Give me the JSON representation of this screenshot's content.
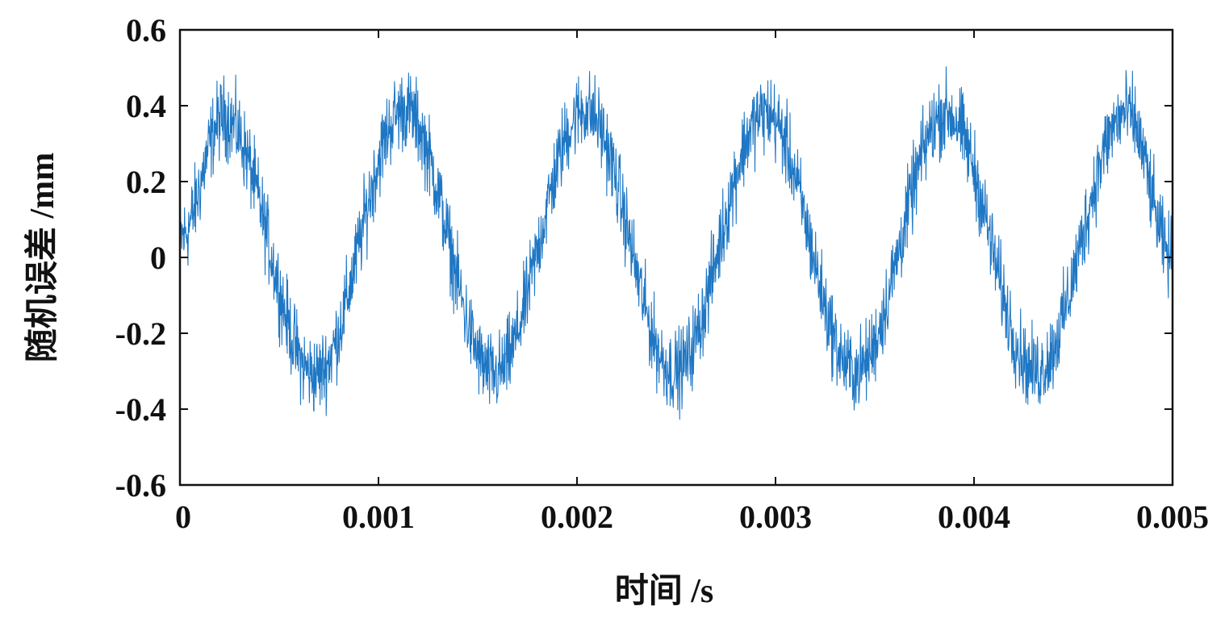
{
  "chart_data": {
    "type": "line",
    "title": "",
    "xlabel": "时间 /s",
    "ylabel": "随机误差 /mm",
    "xlim": [
      0,
      0.005
    ],
    "ylim": [
      -0.6,
      0.6
    ],
    "x_ticks": [
      0,
      0.001,
      0.002,
      0.003,
      0.004,
      0.005
    ],
    "x_tick_labels": [
      "0",
      "0.001",
      "0.002",
      "0.003",
      "0.004",
      "0.005"
    ],
    "y_ticks": [
      -0.6,
      -0.4,
      -0.2,
      0,
      0.2,
      0.4,
      0.6
    ],
    "y_tick_labels": [
      "-0.6",
      "-0.4",
      "-0.2",
      "0",
      "0.2",
      "0.4",
      "0.6"
    ],
    "grid": false,
    "legend": "none",
    "series": [
      {
        "color": "#1f77c4",
        "description_values": {
          "x": [
            0,
            0.00022,
            0.00068,
            0.00113,
            0.00158,
            0.00204,
            0.00249,
            0.00295,
            0.0034,
            0.00386,
            0.00431,
            0.00477,
            0.005
          ],
          "y": [
            0.05,
            0.37,
            -0.31,
            0.39,
            -0.31,
            0.39,
            -0.3,
            0.38,
            -0.3,
            0.38,
            -0.3,
            0.38,
            0.0
          ]
        },
        "noise_amplitude": 0.08
      }
    ]
  }
}
